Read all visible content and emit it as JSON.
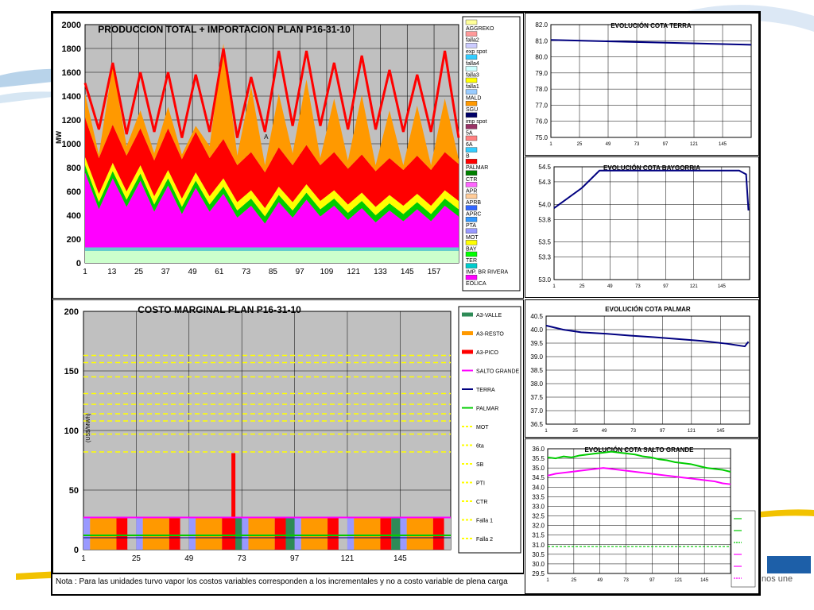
{
  "note": "Nota : Para las unidades turvo vapor los costos variables corresponden a los incrementales y no a costo variable de plena carga",
  "logo_text": "nos une",
  "colors": {
    "plot_bg": "#c0c0c0",
    "pink": "#ff00ff",
    "green": "#00cc00",
    "yellow": "#ffff00",
    "red": "#ff0000",
    "orange": "#ff9900",
    "navy": "#000080",
    "light_green": "#ccffcc"
  },
  "chart_data": [
    {
      "id": "produccion",
      "type": "area",
      "title": "PRODUCCION TOTAL + IMPORTACION PLAN    P16-31-10",
      "ylabel": "MW",
      "ylim": [
        0,
        2000
      ],
      "yticks": [
        0,
        200,
        400,
        600,
        800,
        1000,
        1200,
        1400,
        1600,
        1800,
        2000
      ],
      "xticks": [
        1,
        13,
        25,
        37,
        49,
        61,
        73,
        85,
        97,
        109,
        121,
        133,
        145,
        157
      ],
      "xlim": [
        1,
        168
      ],
      "annotation": "A",
      "legend": [
        "AGGREKO",
        "falla2",
        "exp spot",
        "falla4",
        "falla3",
        "falla1",
        "MALD",
        "SGU",
        "imp spot",
        "5A",
        "6A",
        "B",
        "PALMAR",
        "CTR",
        "APR",
        "APRB",
        "APRC",
        "PTA",
        "MOT",
        "BAY",
        "TER",
        "IMP. BR RIVERA",
        "EOLICA"
      ],
      "legend_colors": [
        "#ffff99",
        "#ff9999",
        "#ccccff",
        "#33ccff",
        "#ccffff",
        "#ffff00",
        "#99ccff",
        "#ff9900",
        "#000066",
        "#993366",
        "#ff8080",
        "#33ccff",
        "#ff0000",
        "#008000",
        "#ff66ff",
        "#ffcc99",
        "#3366ff",
        "#3399ff",
        "#9999ff",
        "#ffff00",
        "#00ff00",
        "#00cccc",
        "#ff00ff"
      ],
      "series": [
        {
          "name": "EOLICA",
          "values": [
            100,
            100,
            100,
            100,
            100,
            100,
            100,
            100,
            100,
            100,
            100,
            100,
            100,
            100,
            100,
            100,
            100,
            100,
            100,
            100,
            100,
            100,
            100,
            100,
            100,
            100,
            100,
            100
          ]
        },
        {
          "name": "IMP. BR RIVERA",
          "values": [
            30,
            30,
            30,
            30,
            30,
            30,
            30,
            30,
            30,
            30,
            30,
            30,
            30,
            30,
            30,
            30,
            30,
            30,
            30,
            30,
            30,
            30,
            30,
            30,
            30,
            30,
            30,
            30
          ]
        },
        {
          "name": "BAY",
          "values": [
            630,
            320,
            580,
            340,
            560,
            300,
            520,
            280,
            500,
            300,
            450,
            250,
            350,
            200,
            380,
            250,
            400,
            260,
            350,
            230,
            330,
            210,
            310,
            220,
            320,
            220,
            350,
            260
          ]
        },
        {
          "name": "TER",
          "values": [
            60,
            60,
            60,
            60,
            60,
            60,
            60,
            60,
            60,
            60,
            60,
            60,
            60,
            60,
            60,
            60,
            60,
            60,
            60,
            60,
            60,
            60,
            60,
            60,
            60,
            60,
            60,
            60
          ]
        },
        {
          "name": "falla1",
          "values": [
            70,
            70,
            70,
            70,
            70,
            70,
            70,
            70,
            70,
            70,
            70,
            70,
            70,
            70,
            70,
            70,
            70,
            70,
            70,
            70,
            70,
            70,
            70,
            70,
            70,
            70,
            70,
            70
          ]
        },
        {
          "name": "PALMAR",
          "values": [
            330,
            300,
            320,
            300,
            310,
            300,
            350,
            330,
            340,
            320,
            330,
            310,
            320,
            300,
            330,
            310,
            330,
            300,
            320,
            300,
            320,
            300,
            310,
            300,
            320,
            300,
            320,
            310
          ]
        },
        {
          "name": "SGU",
          "values": [
            200,
            30,
            500,
            80,
            150,
            60,
            180,
            40,
            50,
            100,
            800,
            80,
            550,
            60,
            450,
            100,
            550,
            60,
            450,
            70,
            500,
            50,
            400,
            40,
            420,
            40,
            450,
            40
          ]
        }
      ],
      "totals": [
        1510,
        1120,
        1680,
        1080,
        1600,
        1100,
        1600,
        1050,
        1580,
        1100,
        1800,
        1050,
        1560,
        1100,
        1780,
        1150,
        1780,
        1150,
        1680,
        1120,
        1740,
        1120,
        1620,
        1100,
        1580,
        1100,
        1780,
        1050
      ]
    },
    {
      "id": "costo",
      "type": "bar",
      "title": "COSTO MARGINAL  PLAN    P16-31-10",
      "ylabel": "(US$/MWh)",
      "ylim": [
        0,
        200
      ],
      "yticks": [
        0,
        50,
        100,
        150,
        200
      ],
      "xticks": [
        1,
        25,
        49,
        73,
        97,
        121,
        145
      ],
      "xlim": [
        1,
        168
      ],
      "legend": [
        "A3-VALLE",
        "A3-RESTO",
        "A3-PICO",
        "SALTO GRANDE",
        "TERRA",
        "PALMAR",
        "MOT",
        "6ta",
        "SB",
        "PTI",
        "CTR",
        "Falla 1",
        "Falla 2"
      ],
      "dashed_levels": [
        163,
        157,
        145,
        131,
        122,
        114,
        108,
        97,
        82
      ],
      "spike": {
        "x": 69,
        "value": 81
      },
      "salto_grande_level": 27,
      "palmar_level": 12,
      "terra_level": 10,
      "band_value": 27
    },
    {
      "id": "terra",
      "type": "line",
      "title": "EVOLUCIÓN COTA TERRA",
      "ylim": [
        75.0,
        82.0
      ],
      "yticks": [
        "75.0",
        "76.0",
        "77.0",
        "78.0",
        "79.0",
        "80.0",
        "81.0",
        "82.0"
      ],
      "xticks": [
        1,
        25,
        49,
        73,
        97,
        121,
        145
      ],
      "x": [
        1,
        169
      ],
      "y": [
        81.05,
        80.75
      ]
    },
    {
      "id": "baygorria",
      "type": "line",
      "title": "EVOLUCIÓN COTA BAYGORRIA",
      "ylim": [
        53.0,
        54.5
      ],
      "yticks": [
        "53.0",
        "53.3",
        "53.5",
        "53.8",
        "54.0",
        "54.3",
        "54.5"
      ],
      "xticks": [
        1,
        25,
        49,
        73,
        97,
        121,
        145
      ],
      "x": [
        1,
        25,
        40,
        60,
        100,
        140,
        160,
        166,
        168
      ],
      "y": [
        53.95,
        54.22,
        54.45,
        54.45,
        54.45,
        54.45,
        54.45,
        54.4,
        53.92
      ]
    },
    {
      "id": "palmar",
      "type": "line",
      "title": "EVOLUCIÓN COTA PALMAR",
      "ylim": [
        36.5,
        40.5
      ],
      "yticks": [
        "36.5",
        "37.0",
        "37.5",
        "38.0",
        "38.5",
        "39.0",
        "39.5",
        "40.0",
        "40.5"
      ],
      "xticks": [
        1,
        25,
        49,
        73,
        97,
        121,
        145
      ],
      "x": [
        1,
        15,
        30,
        50,
        70,
        90,
        110,
        130,
        150,
        165,
        168
      ],
      "y": [
        40.15,
        40.0,
        39.9,
        39.85,
        39.78,
        39.72,
        39.65,
        39.58,
        39.48,
        39.38,
        39.55
      ]
    },
    {
      "id": "salto_grande",
      "type": "line",
      "title": "EVOLUCIÓN COTA SALTO GRANDE",
      "ylim": [
        29.5,
        36.0
      ],
      "yticks": [
        "29.5",
        "30.0",
        "30.5",
        "31.0",
        "31.5",
        "32.0",
        "32.5",
        "33.0",
        "33.5",
        "34.0",
        "34.5",
        "35.0",
        "35.5",
        "36.0"
      ],
      "xticks": [
        1,
        25,
        49,
        73,
        97,
        121,
        145
      ],
      "series": [
        {
          "values": [
            35.55,
            35.5,
            35.6,
            35.55,
            35.65,
            35.7,
            35.75,
            35.8,
            35.85,
            35.8,
            35.75,
            35.7,
            35.6,
            35.55,
            35.45,
            35.4,
            35.3,
            35.25,
            35.2,
            35.1,
            35.0,
            34.95,
            34.9,
            34.8
          ]
        },
        {
          "values": [
            34.6,
            34.7,
            34.75,
            34.8,
            34.85,
            34.9,
            34.95,
            35.0,
            34.95,
            34.9,
            34.85,
            34.8,
            34.75,
            34.7,
            34.65,
            34.6,
            34.55,
            34.5,
            34.45,
            34.4,
            34.35,
            34.3,
            34.2,
            34.15
          ]
        }
      ],
      "guide_level": 30.9
    }
  ]
}
